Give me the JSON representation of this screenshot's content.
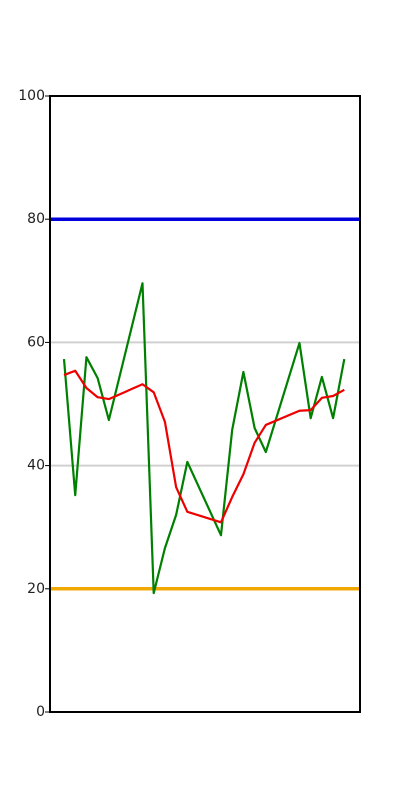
{
  "chart_data": {
    "type": "line",
    "x": [
      0,
      1,
      2,
      3,
      4,
      7,
      8,
      9,
      10,
      11,
      14,
      15,
      16,
      17,
      18,
      21,
      22,
      23,
      24,
      25
    ],
    "xlim": [
      -1.25,
      26.4
    ],
    "series": [
      {
        "color": "#008000",
        "values": [
          57.3,
          35.2,
          57.6,
          54.2,
          47.4,
          69.6,
          19.3,
          26.6,
          32.0,
          40.6,
          28.7,
          45.8,
          55.2,
          46.1,
          42.2,
          59.9,
          47.7,
          54.4,
          47.7,
          57.3
        ]
      },
      {
        "color": "#ee0000",
        "values": [
          54.7,
          55.4,
          52.6,
          51.1,
          50.8,
          53.2,
          51.9,
          47.1,
          36.5,
          32.5,
          30.8,
          34.9,
          38.6,
          43.7,
          46.6,
          48.9,
          49.0,
          51.0,
          51.3,
          52.3
        ]
      }
    ],
    "reference_lines": [
      {
        "value": 80,
        "color": "#0000dd"
      },
      {
        "value": 20,
        "color": "#f0a800"
      }
    ],
    "ylim": [
      0,
      100
    ],
    "yticks": [
      0,
      20,
      40,
      60,
      80,
      100
    ],
    "grid": true
  }
}
